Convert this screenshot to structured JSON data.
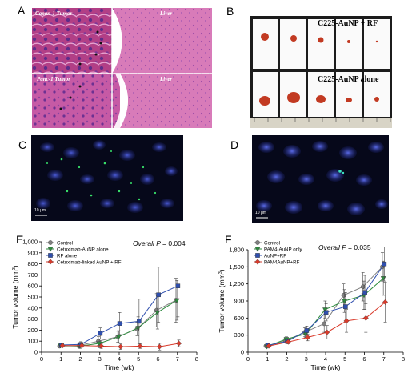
{
  "figure": {
    "panel_letters": [
      "A",
      "B",
      "C",
      "D",
      "E",
      "F"
    ],
    "panelA": {
      "labels": [
        "Capan-1 Tumor",
        "Liver",
        "Panc-1 Tumor",
        "Liver"
      ]
    },
    "panelB": {
      "top_label": "C225-AuNP + RF",
      "bottom_label": "C225-AuNP alone"
    },
    "panelC": {
      "scale_bar": "10 μm"
    },
    "panelD": {
      "scale_bar": "10 μm"
    }
  },
  "chart_data": [
    {
      "type": "line",
      "panel": "E",
      "annotation_prefix": "Overall",
      "annotation_p": "P",
      "annotation_value": "= 0.004",
      "xlabel": "Time (wk)",
      "ylabel_main": "Tumor volume (mm",
      "ylabel_sup": "3",
      "ylabel_end": ")",
      "xlim": [
        0,
        8
      ],
      "ylim": [
        0,
        1000
      ],
      "xticks": [
        "0",
        "1",
        "2",
        "3",
        "4",
        "5",
        "6",
        "7",
        "8"
      ],
      "yticks": [
        "0",
        "100",
        "200",
        "300",
        "400",
        "500",
        "600",
        "700",
        "800",
        "900",
        "1,000"
      ],
      "x": [
        1,
        2,
        3,
        4,
        5,
        6,
        7
      ],
      "series": [
        {
          "name": "Control",
          "color": "#808080",
          "marker": "circle",
          "values": [
            55,
            60,
            100,
            140,
            210,
            380,
            470
          ],
          "errors": [
            10,
            20,
            40,
            50,
            60,
            150,
            200
          ]
        },
        {
          "name": "Cetuximab-AuNP alone",
          "color": "#2e8b3e",
          "marker": "triangle-down",
          "values": [
            60,
            55,
            80,
            140,
            220,
            360,
            470
          ],
          "errors": [
            15,
            20,
            40,
            55,
            100,
            150,
            180
          ]
        },
        {
          "name": "RF alone",
          "color": "#2f4fae",
          "marker": "square",
          "values": [
            65,
            70,
            170,
            260,
            280,
            520,
            600
          ],
          "errors": [
            15,
            25,
            50,
            100,
            200,
            250,
            280
          ]
        },
        {
          "name": "Cetuximab-linked AuNP + RF",
          "color": "#d93a2b",
          "marker": "diamond",
          "values": [
            60,
            60,
            55,
            50,
            55,
            50,
            80
          ],
          "errors": [
            15,
            15,
            20,
            25,
            20,
            30,
            30
          ]
        }
      ]
    },
    {
      "type": "line",
      "panel": "F",
      "annotation_prefix": "Overall",
      "annotation_p": "P",
      "annotation_value": "= 0.035",
      "xlabel": "Time (wk)",
      "ylabel_main": "Tumor volume (mm",
      "ylabel_sup": "3",
      "ylabel_end": ")",
      "xlim": [
        0,
        8
      ],
      "ylim": [
        0,
        1800
      ],
      "xticks": [
        "0",
        "1",
        "2",
        "3",
        "4",
        "5",
        "6",
        "7",
        "8"
      ],
      "yticks": [
        "0",
        "300",
        "600",
        "900",
        "1,200",
        "1,500",
        "1,800"
      ],
      "x": [
        1,
        2,
        3,
        4,
        5,
        6,
        7
      ],
      "series": [
        {
          "name": "Control",
          "color": "#808080",
          "marker": "circle",
          "values": [
            110,
            200,
            350,
            500,
            1000,
            1150,
            1500
          ],
          "errors": [
            20,
            40,
            80,
            150,
            200,
            250,
            250
          ]
        },
        {
          "name": "PAM4-AuNP only",
          "color": "#2e8b3e",
          "marker": "triangle-down",
          "values": [
            100,
            230,
            320,
            750,
            900,
            1000,
            1300
          ],
          "errors": [
            20,
            40,
            60,
            150,
            200,
            250,
            300
          ]
        },
        {
          "name": "AuNP+RF",
          "color": "#2f4fae",
          "marker": "square",
          "values": [
            120,
            190,
            380,
            700,
            800,
            1050,
            1550
          ],
          "errors": [
            20,
            40,
            80,
            150,
            250,
            300,
            300
          ]
        },
        {
          "name": "PAM4AuNP+RF",
          "color": "#d93a2b",
          "marker": "diamond",
          "values": [
            110,
            180,
            260,
            350,
            550,
            600,
            880
          ],
          "errors": [
            20,
            30,
            60,
            120,
            200,
            250,
            350
          ]
        }
      ]
    }
  ]
}
